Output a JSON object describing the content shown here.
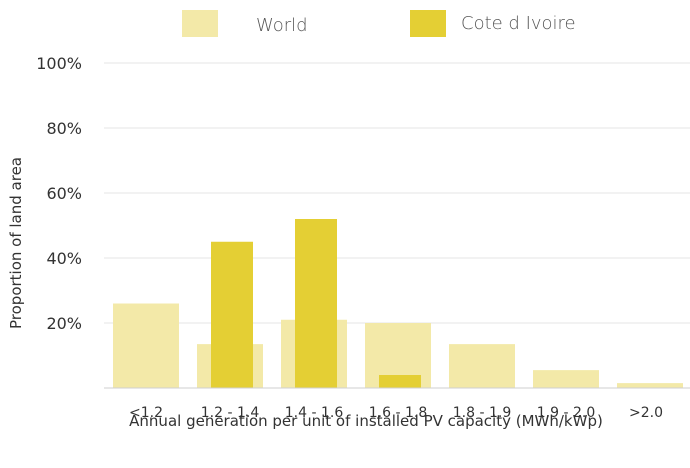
{
  "chart_data": {
    "type": "bar",
    "categories": [
      "<1.2",
      "1.2 - 1.4",
      "1.4 - 1.6",
      "1.6 - 1.8",
      "1.8 - 1.9",
      "1.9 - 2.0",
      ">2.0"
    ],
    "series": [
      {
        "name": "World",
        "color": "#f3e9a8",
        "values": [
          26,
          13.5,
          21,
          20,
          13.5,
          5.5,
          1.5
        ]
      },
      {
        "name": "Cote d Ivoire",
        "color": "#e4cf34",
        "values": [
          0,
          45,
          52,
          4,
          0,
          0,
          0
        ]
      }
    ],
    "xlabel": "Annual generation per unit of installed PV capacity (MWh/kWp)",
    "ylabel": "Proportion of land area",
    "ylim": [
      0,
      100
    ],
    "yticks": [
      {
        "value": 20,
        "label": "20%"
      },
      {
        "value": 40,
        "label": "40%"
      },
      {
        "value": 60,
        "label": "60%"
      },
      {
        "value": 80,
        "label": "80%"
      },
      {
        "value": 100,
        "label": "100%"
      }
    ],
    "grid": true,
    "legend_position": "top-center",
    "gridline_color": "#e6e6e6",
    "baseline_color": "#cfcfcf"
  }
}
